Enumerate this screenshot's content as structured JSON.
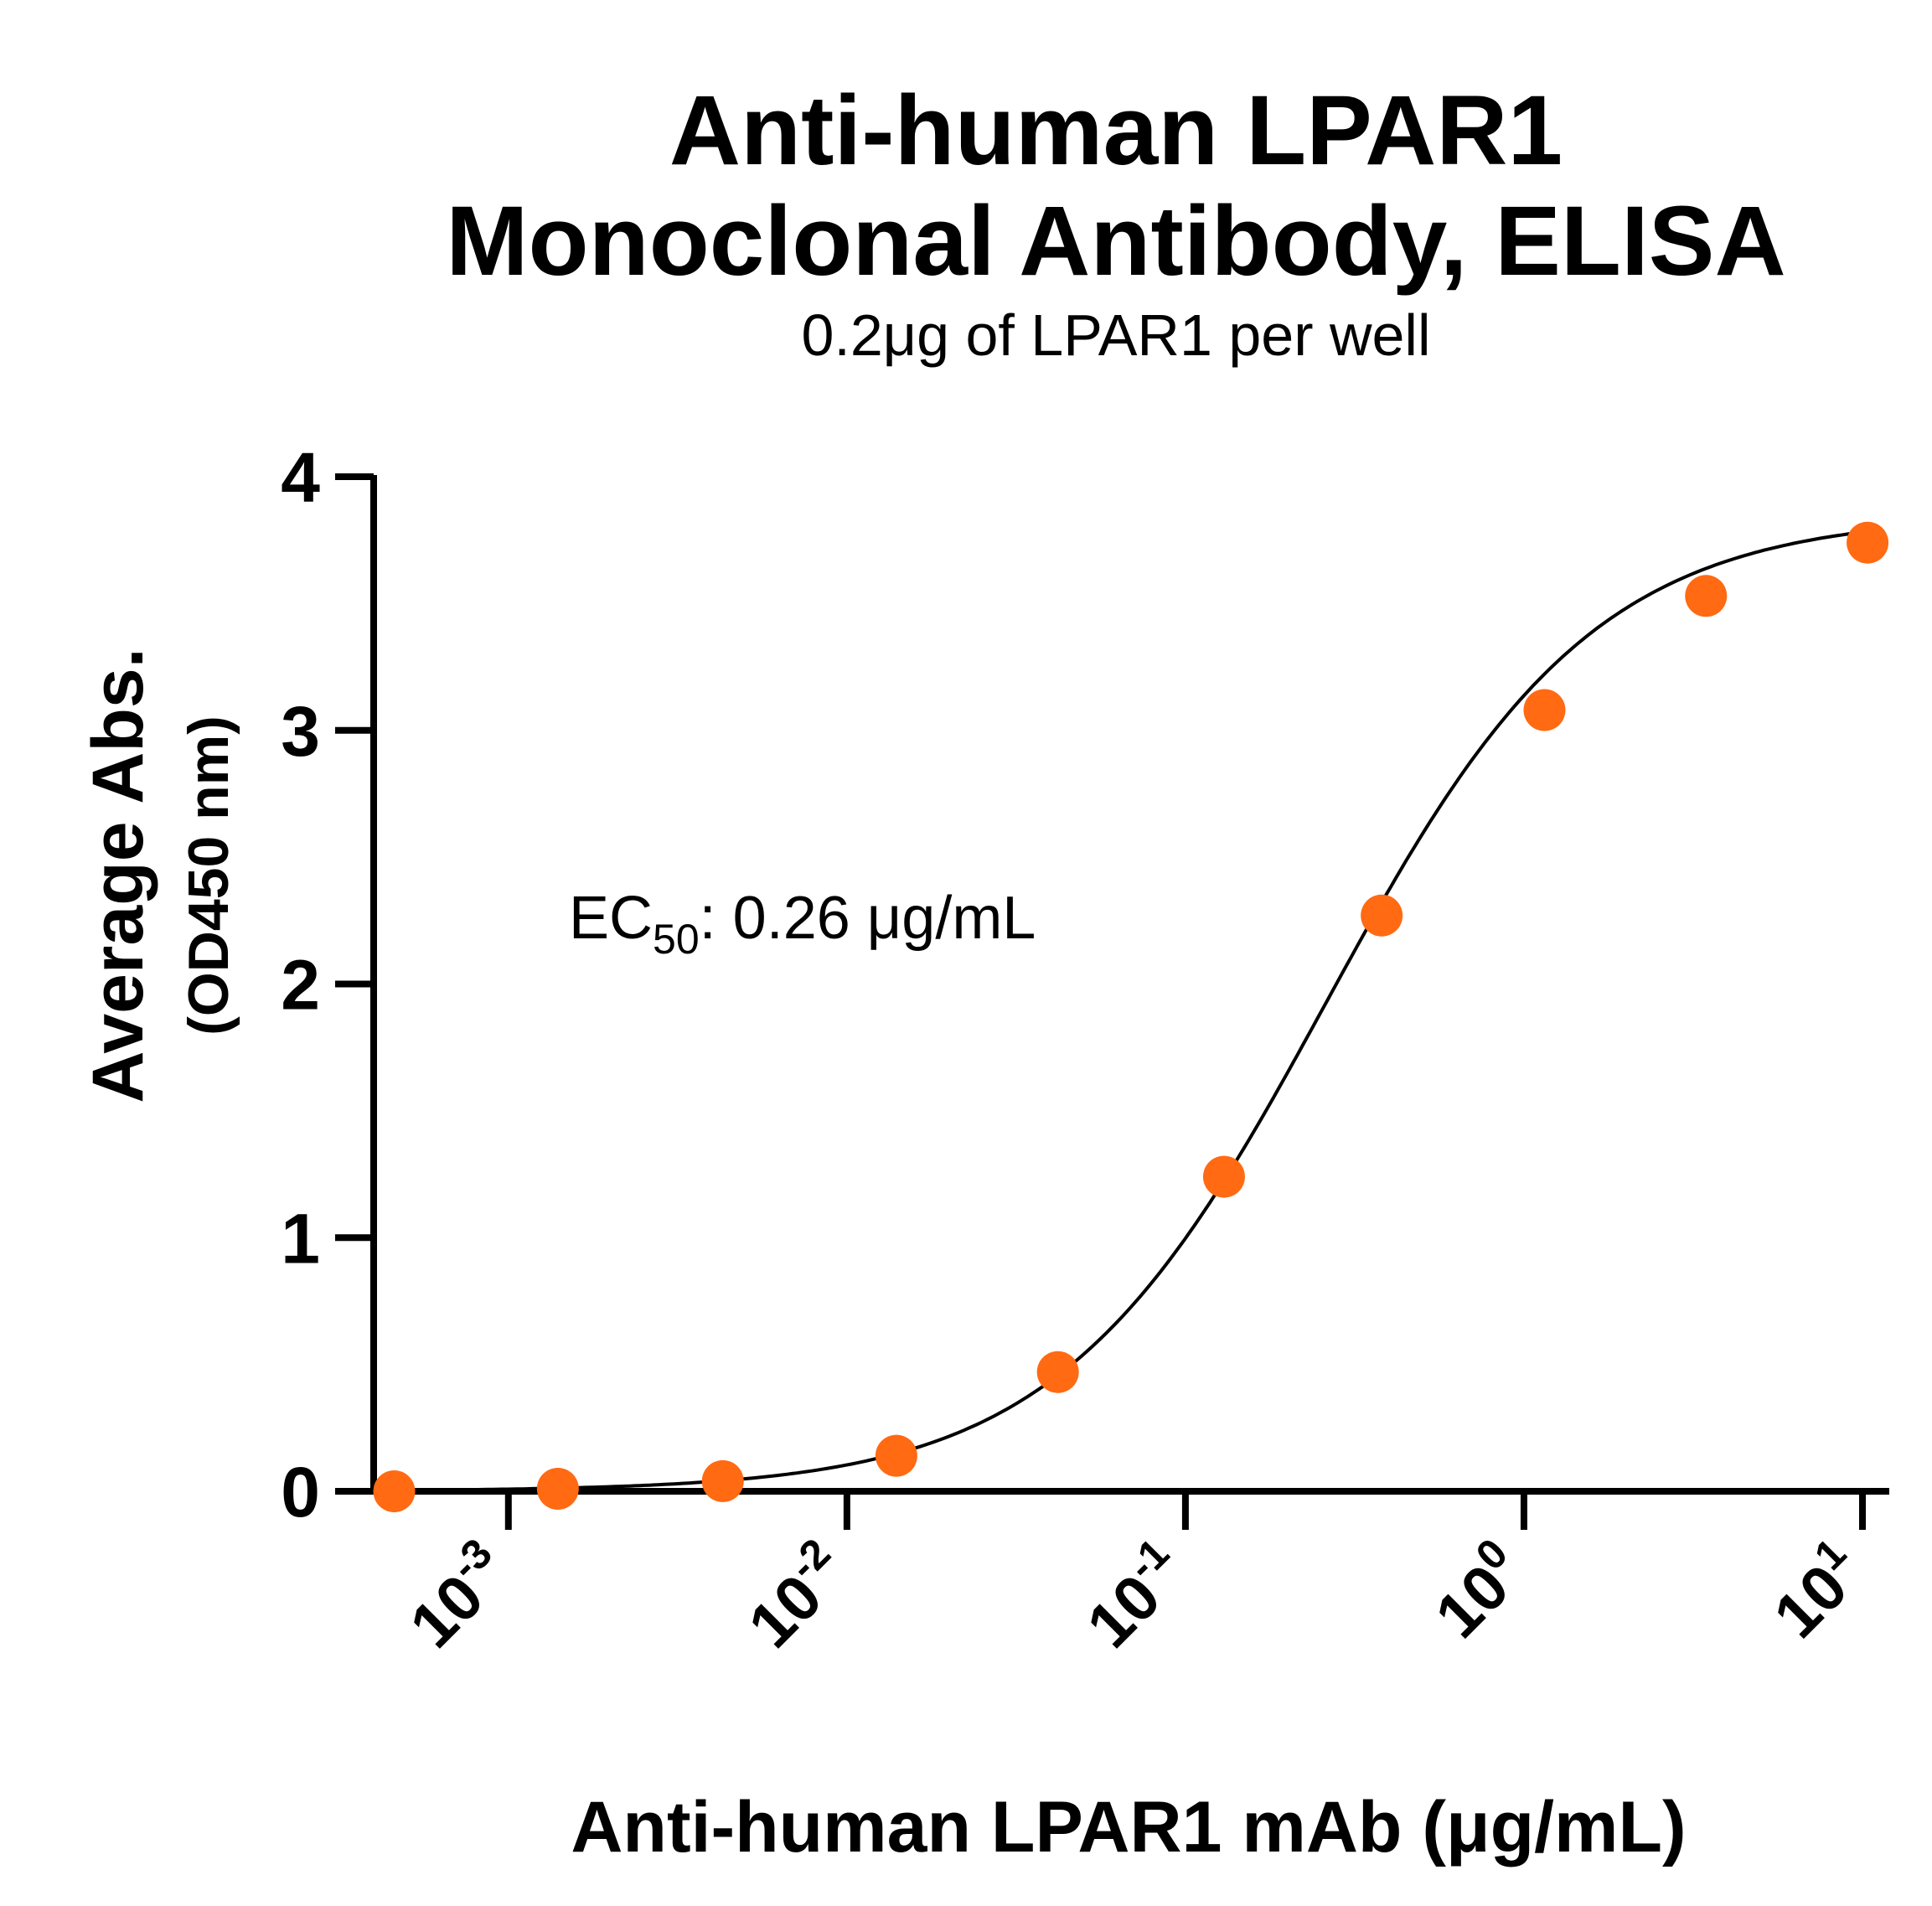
{
  "chart_data": {
    "type": "scatter",
    "title": [
      "Anti-human LPAR1",
      "Monoclonal Antibody, ELISA"
    ],
    "subtitle": "0.2μg of LPAR1 per well",
    "xlabel": "Anti-human LPAR1 mAb (μg/mL)",
    "ylabel": [
      "Average Abs.",
      "(OD450 nm)"
    ],
    "x_scale": "log10",
    "xlim": [
      0.0004,
      12
    ],
    "ylim": [
      0,
      4
    ],
    "x_ticks": [
      {
        "base": "10",
        "exp": "-3"
      },
      {
        "base": "10",
        "exp": "-2"
      },
      {
        "base": "10",
        "exp": "-1"
      },
      {
        "base": "10",
        "exp": "0"
      },
      {
        "base": "10",
        "exp": "1"
      }
    ],
    "x_tick_values": [
      0.001,
      0.01,
      0.1,
      1,
      10
    ],
    "y_ticks": [
      "0",
      "1",
      "2",
      "3",
      "4"
    ],
    "y_tick_values": [
      0,
      1,
      2,
      3,
      4
    ],
    "series": [
      {
        "x": [
          0.00046,
          0.0014,
          0.0043,
          0.014,
          0.042,
          0.13,
          0.38,
          1.15,
          3.45,
          10.35
        ],
        "y": [
          0.0,
          0.01,
          0.04,
          0.14,
          0.47,
          1.24,
          2.27,
          3.08,
          3.53,
          3.74
        ],
        "color": "#ff6a13"
      }
    ],
    "fit": {
      "type": "4PL",
      "bottom": 0.0,
      "top": 3.85,
      "ec50": 0.26,
      "hill": 1.1,
      "color": "#000000"
    },
    "annotation": {
      "prefix": "EC",
      "subscript": "50",
      "text": ": 0.26 μg/mL"
    },
    "grid": false,
    "legend": "none"
  }
}
